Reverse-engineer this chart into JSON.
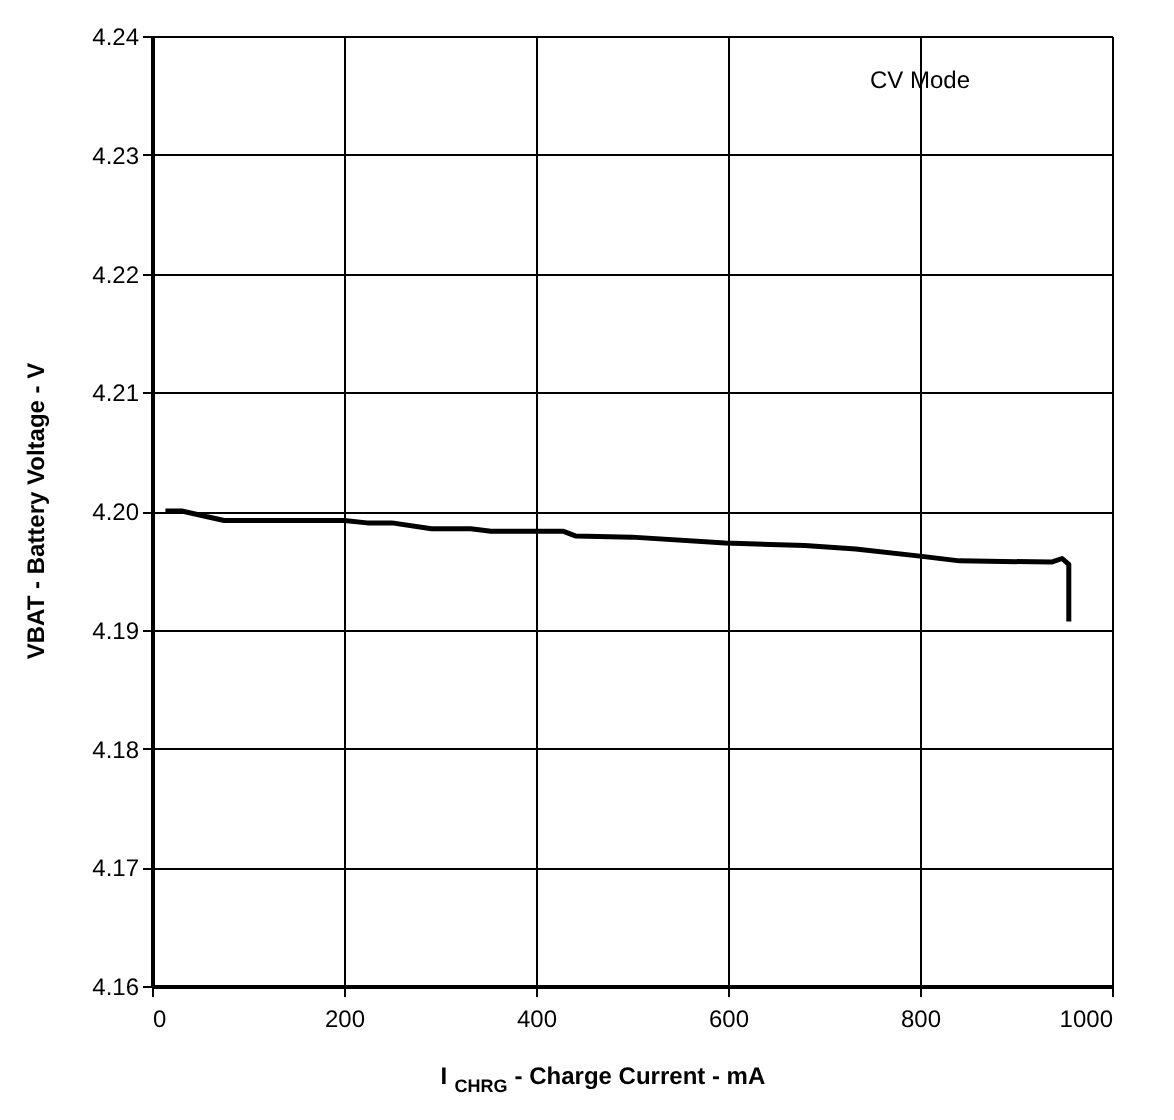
{
  "chart_data": {
    "type": "line",
    "xlabel": "I$_{CHRG}$ - Charge Current - mA",
    "ylabel": "VBAT - Battery Voltage - V",
    "annotations": [
      "CV Mode"
    ],
    "series": [
      {
        "color": "#000000",
        "x": [
          14,
          31,
          75,
          200,
          224,
          250,
          291,
          332,
          353,
          428,
          441,
          500,
          597,
          680,
          733,
          800,
          841,
          937,
          948,
          955,
          955
        ],
        "values": [
          4.2,
          4.2,
          4.1992,
          4.1992,
          4.199,
          4.199,
          4.1985,
          4.1985,
          4.1983,
          4.1983,
          4.1979,
          4.1978,
          4.1973,
          4.1971,
          4.1968,
          4.1962,
          4.1958,
          4.1957,
          4.196,
          4.1955,
          4.1907
        ]
      }
    ],
    "xlim": [
      0,
      1000
    ],
    "xticks": [
      0,
      200,
      400,
      600,
      800,
      1000
    ],
    "ylim": [
      4.16,
      4.24
    ],
    "yticks": [
      4.16,
      4.17,
      4.18,
      4.19,
      {
        "value": 4.2,
        "label": "4.20"
      },
      4.21,
      4.22,
      4.23,
      4.24
    ],
    "grid": true,
    "marker": "none",
    "line_style": "solid"
  }
}
